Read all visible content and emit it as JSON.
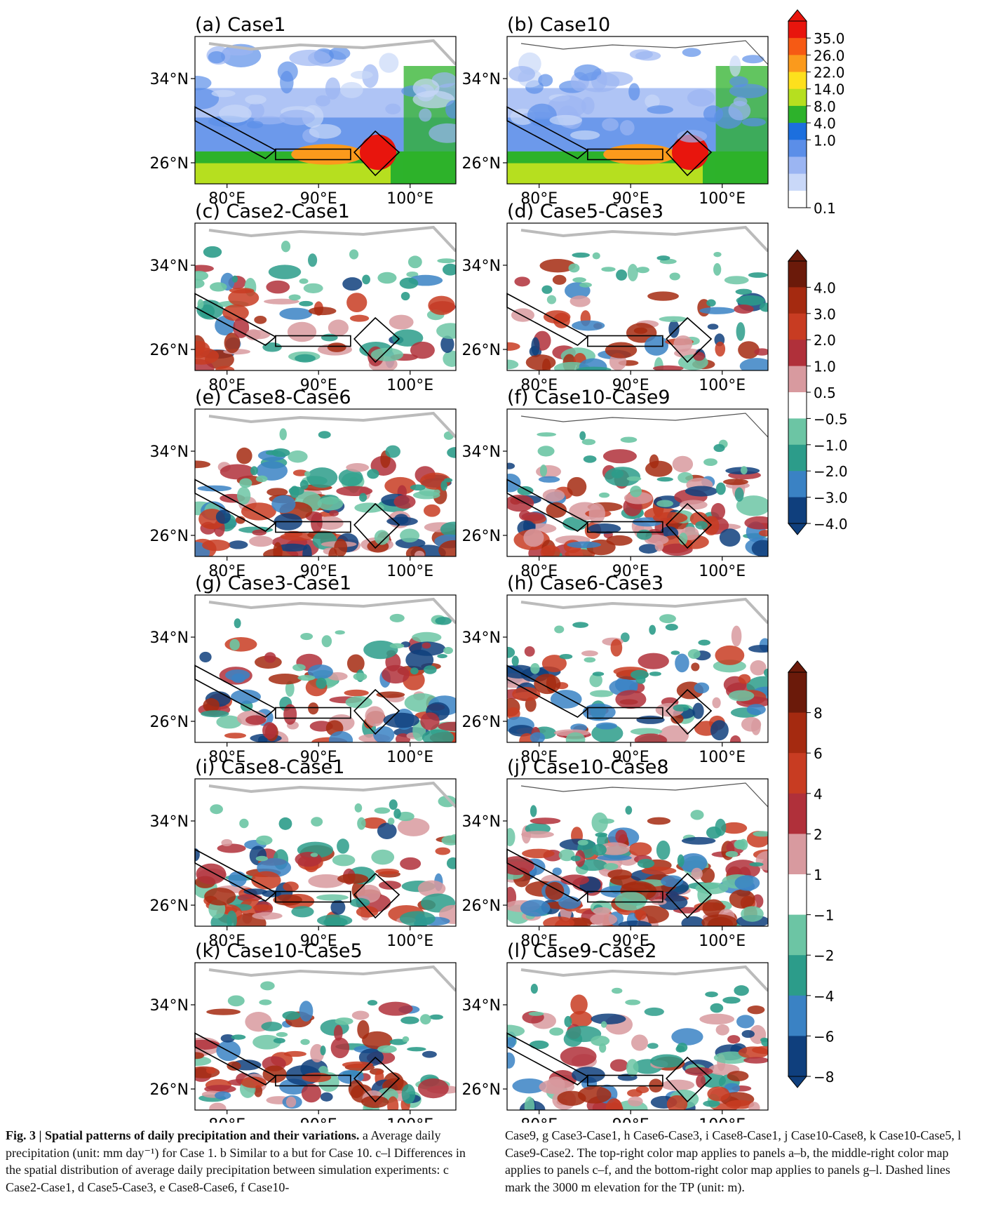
{
  "panels": [
    {
      "title": "(a) Case1",
      "col": 0,
      "row": 0,
      "kind": "abs"
    },
    {
      "title": "(b) Case10",
      "col": 1,
      "row": 0,
      "kind": "abs"
    },
    {
      "title": "(c) Case2-Case1",
      "col": 0,
      "row": 1,
      "kind": "diff"
    },
    {
      "title": "(d) Case5-Case3",
      "col": 1,
      "row": 1,
      "kind": "diff"
    },
    {
      "title": "(e) Case8-Case6",
      "col": 0,
      "row": 2,
      "kind": "diff"
    },
    {
      "title": "(f) Case10-Case9",
      "col": 1,
      "row": 2,
      "kind": "diff"
    },
    {
      "title": "(g) Case3-Case1",
      "col": 0,
      "row": 3,
      "kind": "diff8"
    },
    {
      "title": "(h) Case6-Case3",
      "col": 1,
      "row": 3,
      "kind": "diff8"
    },
    {
      "title": "(i) Case8-Case1",
      "col": 0,
      "row": 4,
      "kind": "diff8"
    },
    {
      "title": "(j) Case10-Case8",
      "col": 1,
      "row": 4,
      "kind": "diff8"
    },
    {
      "title": "(k) Case10-Case5",
      "col": 0,
      "row": 5,
      "kind": "diff8"
    },
    {
      "title": "(l) Case9-Case2",
      "col": 1,
      "row": 5,
      "kind": "diff8"
    }
  ],
  "axes": {
    "x_ticks": [
      "80°E",
      "90°E",
      "100°E"
    ],
    "y_ticks": [
      "34°N",
      "26°N"
    ]
  },
  "colorbars": [
    {
      "labels": [
        "35.0",
        "26.0",
        "22.0",
        "14.0",
        "8.0",
        "4.0",
        "1.0",
        "0.1"
      ],
      "colors": [
        "#e8150d",
        "#f65a14",
        "#fb9a1c",
        "#fde01d",
        "#b6df1f",
        "#2db22b",
        "#1c6fde",
        "#5b8ee8",
        "#9bb5f2",
        "#c9d8f8",
        "#ffffff"
      ]
    },
    {
      "labels": [
        "4.0",
        "3.0",
        "2.0",
        "1.0",
        "0.5",
        "−0.5",
        "−1.0",
        "−2.0",
        "−3.0",
        "−4.0"
      ],
      "colors": [
        "#6b1a0a",
        "#a52a10",
        "#c83c22",
        "#b0303a",
        "#d89a9f",
        "#ffffff",
        "#6cc5a4",
        "#2c9c8a",
        "#3a82c4",
        "#0f3f7d"
      ]
    },
    {
      "labels": [
        "8",
        "6",
        "4",
        "2",
        "1",
        "−1",
        "−2",
        "−4",
        "−6",
        "−8"
      ],
      "colors": [
        "#6b1a0a",
        "#a52a10",
        "#c83c22",
        "#b0303a",
        "#d89a9f",
        "#ffffff",
        "#6cc5a4",
        "#2c9c8a",
        "#3a82c4",
        "#0f3f7d"
      ]
    }
  ],
  "caption": {
    "label": "Fig. 3 | Spatial patterns of daily precipitation and their variations.",
    "left_text": " a Average daily precipitation (unit: mm day⁻¹) for Case 1. b Similar to a but for Case 10. c–l Differences in the spatial distribution of average daily precipitation between simulation experiments: c Case2-Case1, d Case5-Case3, e Case8-Case6, f Case10-",
    "right_text": "Case9, g Case3-Case1, h Case6-Case3, i Case8-Case1, j Case10-Case8, k Case10-Case5, l Case9-Case2. The top-right color map applies to panels a–b, the middle-right color map applies to panels c–f, and the bottom-right color map applies to panels g–l. Dashed lines mark the 3000 m elevation for the TP (unit: m)."
  }
}
